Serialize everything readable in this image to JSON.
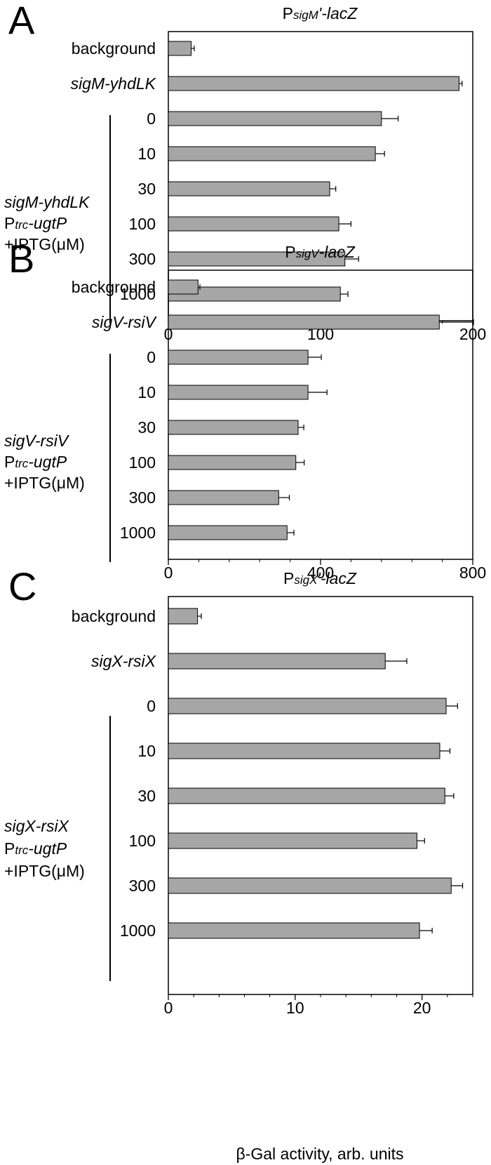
{
  "chart_data": [
    {
      "type": "bar",
      "orientation": "horizontal",
      "panel_label": "A",
      "title": {
        "prefix": "P",
        "subscript": "sigM",
        "suffix": "'-lacZ"
      },
      "categories": [
        "background",
        "sigM-yhdLK",
        "0",
        "10",
        "30",
        "100",
        "300",
        "1000"
      ],
      "italic_categories": [
        "sigM-yhdLK"
      ],
      "values": [
        15,
        191,
        140,
        136,
        106,
        112,
        116,
        113
      ],
      "errors": [
        2,
        2,
        11,
        6,
        4,
        8,
        9,
        5
      ],
      "xlim": [
        0,
        200
      ],
      "xticks": [
        0,
        100,
        200
      ],
      "group_label": {
        "strain": "sigM-yhdLK",
        "promoter_prefix": "P",
        "promoter_subscript": "trc",
        "promoter_suffix": "-ugtP",
        "treatment": "+IPTG(μM)"
      }
    },
    {
      "type": "bar",
      "orientation": "horizontal",
      "panel_label": "B",
      "title": {
        "prefix": "P",
        "subscript": "sigV",
        "suffix": "-lacZ"
      },
      "categories": [
        "background",
        "sigV-rsiV",
        "0",
        "10",
        "30",
        "100",
        "300",
        "1000"
      ],
      "italic_categories": [
        "sigV-rsiV"
      ],
      "values": [
        78,
        712,
        367,
        367,
        341,
        335,
        290,
        312
      ],
      "errors": [
        5,
        90,
        35,
        50,
        15,
        22,
        28,
        18
      ],
      "xlim": [
        0,
        800
      ],
      "xticks": [
        0,
        400,
        800
      ],
      "group_label": {
        "strain": "sigV-rsiV",
        "promoter_prefix": "P",
        "promoter_subscript": "trc",
        "promoter_suffix": "-ugtP",
        "treatment": "+IPTG(μM)"
      }
    },
    {
      "type": "bar",
      "orientation": "horizontal",
      "panel_label": "C",
      "title": {
        "prefix": "P",
        "subscript": "sigX",
        "suffix": "'-lacZ"
      },
      "categories": [
        "background",
        "sigX-rsiX",
        "0",
        "10",
        "30",
        "100",
        "300",
        "1000"
      ],
      "italic_categories": [
        "sigX-rsiX"
      ],
      "values": [
        2.3,
        17.1,
        21.9,
        21.4,
        21.8,
        19.6,
        22.3,
        19.8
      ],
      "errors": [
        0.3,
        1.7,
        0.9,
        0.8,
        0.7,
        0.6,
        0.9,
        1.0
      ],
      "xlim": [
        0,
        24
      ],
      "xticks": [
        0,
        10,
        20
      ],
      "xlabel": "β-Gal activity, arb. units",
      "group_label": {
        "strain": "sigX-rsiX",
        "promoter_prefix": "P",
        "promoter_subscript": "trc",
        "promoter_suffix": "-ugtP",
        "treatment": "+IPTG(μM)"
      }
    }
  ],
  "style": {
    "bar_fill": "#a6a6a6",
    "bar_stroke": "#000000",
    "axis_color": "#000000"
  }
}
